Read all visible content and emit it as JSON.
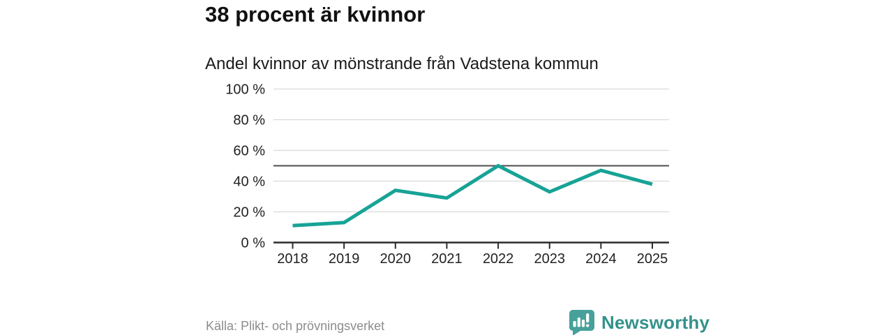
{
  "header": {
    "title": "38 procent är kvinnor",
    "subtitle": "Andel kvinnor av mönstrande från Vadstena kommun"
  },
  "chart_data": {
    "type": "line",
    "title": "38 procent är kvinnor",
    "subtitle": "Andel kvinnor av mönstrande från Vadstena kommun",
    "categories": [
      "2018",
      "2019",
      "2020",
      "2021",
      "2022",
      "2023",
      "2024",
      "2025"
    ],
    "values": [
      11,
      13,
      34,
      29,
      50,
      33,
      47,
      38
    ],
    "unit": "%",
    "ylim": [
      0,
      100
    ],
    "yticks": [
      0,
      20,
      40,
      60,
      80,
      100
    ],
    "ytick_suffix": " %",
    "reference_line": 50,
    "grid": true,
    "legend": "none",
    "xlabel": "",
    "ylabel": ""
  },
  "colors": {
    "line": "#17a396",
    "grid": "#d9d9d9",
    "reference_line": "#4d4d4d",
    "axis": "#2b2b2b",
    "tick_text": "#222222",
    "brand_teal": "#35928b",
    "logo_bubble": "#47a09a",
    "source_text": "#8c8c8c"
  },
  "footer": {
    "source": "Källa: Plikt- och prövningsverket",
    "brand": "Newsworthy"
  }
}
